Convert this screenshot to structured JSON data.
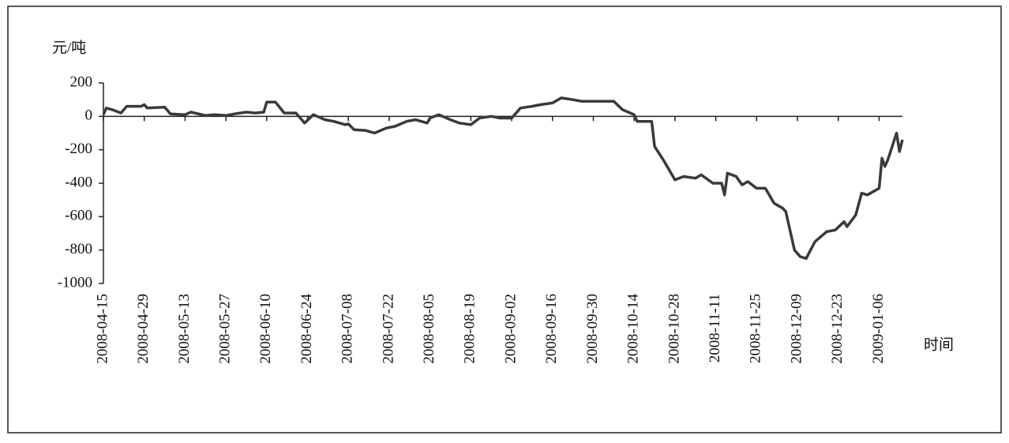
{
  "chart_data": {
    "type": "line",
    "y_label": "元/吨",
    "x_label": "时间",
    "x": [
      "2008-04-15",
      "2008-04-16",
      "2008-04-18",
      "2008-04-21",
      "2008-04-23",
      "2008-04-25",
      "2008-04-28",
      "2008-04-29",
      "2008-04-30",
      "2008-05-06",
      "2008-05-08",
      "2008-05-13",
      "2008-05-15",
      "2008-05-20",
      "2008-05-23",
      "2008-05-27",
      "2008-05-30",
      "2008-06-03",
      "2008-06-06",
      "2008-06-09",
      "2008-06-10",
      "2008-06-13",
      "2008-06-16",
      "2008-06-20",
      "2008-06-23",
      "2008-06-26",
      "2008-06-30",
      "2008-07-03",
      "2008-07-07",
      "2008-07-08",
      "2008-07-10",
      "2008-07-14",
      "2008-07-17",
      "2008-07-21",
      "2008-07-24",
      "2008-07-28",
      "2008-07-31",
      "2008-08-04",
      "2008-08-05",
      "2008-08-08",
      "2008-08-12",
      "2008-08-15",
      "2008-08-19",
      "2008-08-22",
      "2008-08-26",
      "2008-08-29",
      "2008-09-02",
      "2008-09-05",
      "2008-09-09",
      "2008-09-12",
      "2008-09-16",
      "2008-09-19",
      "2008-09-23",
      "2008-09-26",
      "2008-09-30",
      "2008-10-03",
      "2008-10-07",
      "2008-10-10",
      "2008-10-14",
      "2008-10-15",
      "2008-10-20",
      "2008-10-21",
      "2008-10-24",
      "2008-10-28",
      "2008-10-31",
      "2008-11-04",
      "2008-11-06",
      "2008-11-10",
      "2008-11-13",
      "2008-11-14",
      "2008-11-15",
      "2008-11-18",
      "2008-11-20",
      "2008-11-22",
      "2008-11-25",
      "2008-11-28",
      "2008-12-01",
      "2008-12-04",
      "2008-12-05",
      "2008-12-08",
      "2008-12-10",
      "2008-12-12",
      "2008-12-15",
      "2008-12-19",
      "2008-12-22",
      "2008-12-25",
      "2008-12-26",
      "2008-12-29",
      "2008-12-31",
      "2009-01-02",
      "2009-01-05",
      "2009-01-06",
      "2009-01-07",
      "2009-01-08",
      "2009-01-09",
      "2009-01-12",
      "2009-01-13",
      "2009-01-14"
    ],
    "series": [
      {
        "color": "#3a3a3a",
        "values": [
          10,
          50,
          40,
          20,
          60,
          60,
          60,
          70,
          50,
          55,
          15,
          10,
          25,
          5,
          10,
          5,
          15,
          25,
          20,
          25,
          85,
          85,
          20,
          20,
          -40,
          10,
          -20,
          -30,
          -50,
          -45,
          -80,
          -85,
          -100,
          -70,
          -60,
          -30,
          -20,
          -40,
          -10,
          10,
          -20,
          -40,
          -50,
          -10,
          0,
          -10,
          -10,
          50,
          60,
          70,
          80,
          110,
          100,
          90,
          90,
          90,
          90,
          40,
          10,
          -30,
          -30,
          -180,
          -260,
          -380,
          -360,
          -370,
          -350,
          -400,
          -400,
          -470,
          -340,
          -360,
          -410,
          -390,
          -430,
          -430,
          -520,
          -550,
          -570,
          -800,
          -840,
          -850,
          -750,
          -690,
          -680,
          -630,
          -660,
          -590,
          -460,
          -470,
          -440,
          -430,
          -250,
          -300,
          -260,
          -100,
          -210,
          -140
        ]
      }
    ],
    "xlim": [
      "2008-04-15",
      "2009-01-14"
    ],
    "xticks": [
      "2008-04-15",
      "2008-04-29",
      "2008-05-13",
      "2008-05-27",
      "2008-06-10",
      "2008-06-24",
      "2008-07-08",
      "2008-07-22",
      "2008-08-05",
      "2008-08-19",
      "2008-09-02",
      "2008-09-16",
      "2008-09-30",
      "2008-10-14",
      "2008-10-28",
      "2008-11-11",
      "2008-11-25",
      "2008-12-09",
      "2008-12-23",
      "2009-01-06"
    ],
    "ylim": [
      -1000,
      200
    ],
    "yticks": [
      200,
      0,
      -200,
      -400,
      -600,
      -800,
      -1000
    ]
  }
}
